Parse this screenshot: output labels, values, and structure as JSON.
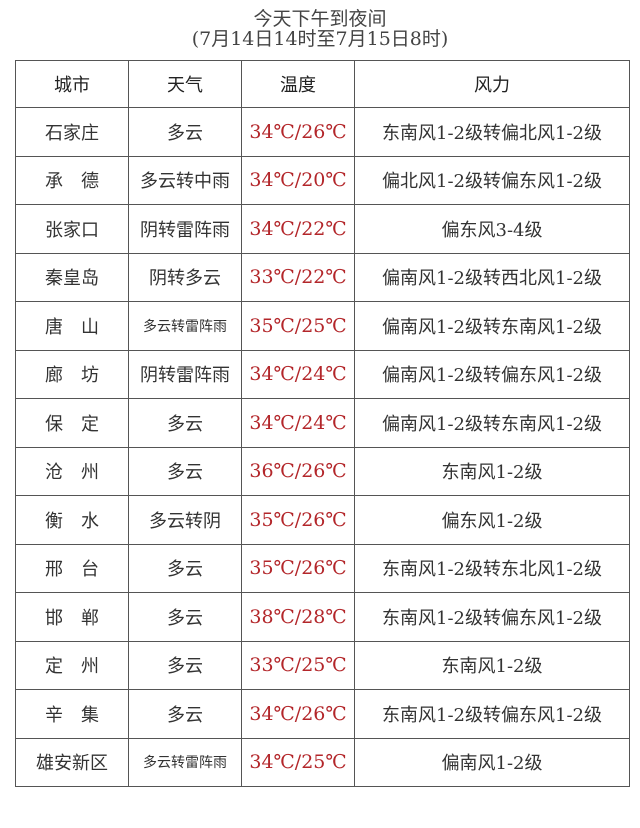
{
  "title": "今天下午到夜间",
  "subtitle": "(7月14日14时至7月15日8时)",
  "colors": {
    "temperature": "#b3262a",
    "border": "#555555"
  },
  "headers": [
    "城市",
    "天气",
    "温度",
    "风力"
  ],
  "rows": [
    {
      "city": "石家庄",
      "weather": "多云",
      "temp": "34℃/26℃",
      "wind": "东南风1-2级转偏北风1-2级"
    },
    {
      "city": "承　德",
      "weather": "多云转中雨",
      "temp": "34℃/20℃",
      "wind": "偏北风1-2级转偏东风1-2级"
    },
    {
      "city": "张家口",
      "weather": "阴转雷阵雨",
      "temp": "34℃/22℃",
      "wind": "偏东风3-4级"
    },
    {
      "city": "秦皇岛",
      "weather": "阴转多云",
      "temp": "33℃/22℃",
      "wind": "偏南风1-2级转西北风1-2级"
    },
    {
      "city": "唐　山",
      "weather": "多云转雷阵雨",
      "temp": "35℃/25℃",
      "wind": "偏南风1-2级转东南风1-2级"
    },
    {
      "city": "廊　坊",
      "weather": "阴转雷阵雨",
      "temp": "34℃/24℃",
      "wind": "偏南风1-2级转偏东风1-2级"
    },
    {
      "city": "保　定",
      "weather": "多云",
      "temp": "34℃/24℃",
      "wind": "偏南风1-2级转东南风1-2级"
    },
    {
      "city": "沧　州",
      "weather": "多云",
      "temp": "36℃/26℃",
      "wind": "东南风1-2级"
    },
    {
      "city": "衡　水",
      "weather": "多云转阴",
      "temp": "35℃/26℃",
      "wind": "偏东风1-2级"
    },
    {
      "city": "邢　台",
      "weather": "多云",
      "temp": "35℃/26℃",
      "wind": "东南风1-2级转东北风1-2级"
    },
    {
      "city": "邯　郸",
      "weather": "多云",
      "temp": "38℃/28℃",
      "wind": "东南风1-2级转偏东风1-2级"
    },
    {
      "city": "定　州",
      "weather": "多云",
      "temp": "33℃/25℃",
      "wind": "东南风1-2级"
    },
    {
      "city": "辛　集",
      "weather": "多云",
      "temp": "34℃/26℃",
      "wind": "东南风1-2级转偏东风1-2级"
    },
    {
      "city": "雄安新区",
      "weather": "多云转雷阵雨",
      "temp": "34℃/25℃",
      "wind": "偏南风1-2级"
    }
  ]
}
